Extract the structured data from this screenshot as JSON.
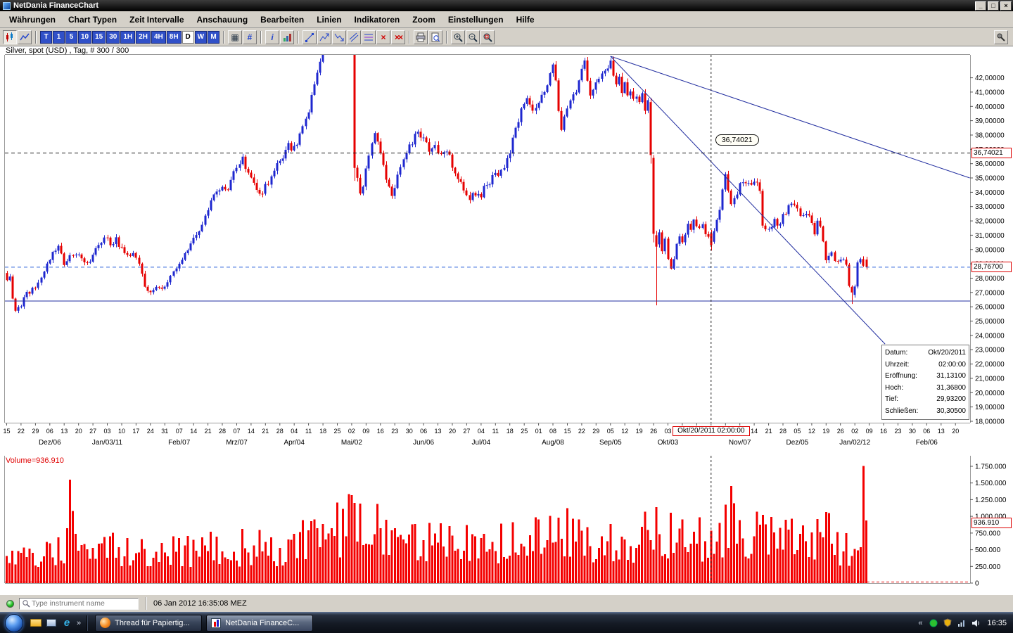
{
  "window": {
    "title": "NetDania FinanceChart",
    "controls": {
      "minimize": "_",
      "maximize": "□",
      "close": "×"
    }
  },
  "menu": {
    "items": [
      "Währungen",
      "Chart Typen",
      "Zeit Intervalle",
      "Anschauung",
      "Bearbeiten",
      "Linien",
      "Indikatoren",
      "Zoom",
      "Einstellungen",
      "Hilfe"
    ]
  },
  "toolbar": {
    "intervals": [
      "T",
      "1",
      "5",
      "10",
      "15",
      "30",
      "1H",
      "2H",
      "4H",
      "8H",
      "D",
      "W",
      "M"
    ],
    "active_interval": "D",
    "glyphs": {
      "grid": "▦",
      "hash": "#",
      "info": "i",
      "delete": "×",
      "delete_all": "××"
    }
  },
  "chart": {
    "instrument_label": "Silver, spot (USD) , Tag, # 300 / 300",
    "volume_pane_label": "Volume=936.910",
    "tooltip_price": "36,74021",
    "marker_price_label": "36,74021",
    "last_price_label": "28,76700",
    "volume_marker_label": "936.910",
    "crosshair_date_label": "Okt/20/2011 02:00:00",
    "data_window": [
      {
        "k": "Datum:",
        "v": "Okt/20/2011"
      },
      {
        "k": "Uhrzeit:",
        "v": "02:00:00"
      },
      {
        "k": "Eröffnung:",
        "v": "31,13100"
      },
      {
        "k": "Hoch:",
        "v": "31,36800"
      },
      {
        "k": "Tief:",
        "v": "29,93200"
      },
      {
        "k": "Schließen:",
        "v": "30,30500"
      }
    ]
  },
  "chart_data": {
    "type": "candlestick",
    "title": "Silver, spot (USD), Tag (daily), 300 of 300 bars, Nov 2010 - 06 Jan 2012",
    "bars_total": 300,
    "y_axis": {
      "min": 18,
      "max": 42,
      "tick_step": 1,
      "plot_max": 43.6,
      "plot_min": 17.9,
      "label_format": "de, 5 decimals"
    },
    "volume_axis": {
      "max": 1750000,
      "tick_step": 250000
    },
    "x_axis": {
      "week_labels": [
        "15",
        "22",
        "29",
        "06",
        "13",
        "20",
        "27",
        "03",
        "10",
        "17",
        "24",
        "31",
        "07",
        "14",
        "21",
        "28",
        "07",
        "14",
        "21",
        "28",
        "04",
        "11",
        "18",
        "25",
        "02",
        "09",
        "16",
        "23",
        "30",
        "06",
        "13",
        "20",
        "27",
        "04",
        "11",
        "18",
        "25",
        "01",
        "08",
        "15",
        "22",
        "29",
        "05",
        "12",
        "19",
        "26",
        "03",
        "10",
        "17",
        "24",
        "31",
        "07",
        "14",
        "21",
        "28",
        "05",
        "12",
        "19",
        "26",
        "02",
        "09",
        "16",
        "23",
        "30",
        "06",
        "13",
        "20"
      ],
      "month_labels": [
        {
          "week": 3,
          "label": "Dez/06"
        },
        {
          "week": 7,
          "label": "Jan/03/11"
        },
        {
          "week": 12,
          "label": "Feb/07"
        },
        {
          "week": 16,
          "label": "Mrz/07"
        },
        {
          "week": 20,
          "label": "Apr/04"
        },
        {
          "week": 24,
          "label": "Mai/02"
        },
        {
          "week": 29,
          "label": "Jun/06"
        },
        {
          "week": 33,
          "label": "Jul/04"
        },
        {
          "week": 38,
          "label": "Aug/08"
        },
        {
          "week": 42,
          "label": "Sep/05"
        },
        {
          "week": 46,
          "label": "Okt/03"
        },
        {
          "week": 51,
          "label": "Nov/07"
        },
        {
          "week": 55,
          "label": "Dez/05"
        },
        {
          "week": 59,
          "label": "Jan/02/12"
        },
        {
          "week": 64,
          "label": "Feb/06"
        }
      ]
    },
    "price_anchors": [
      [
        0,
        27.9
      ],
      [
        1,
        28.3
      ],
      [
        2,
        26.4
      ],
      [
        3,
        25.7
      ],
      [
        5,
        26.1
      ],
      [
        7,
        26.9
      ],
      [
        10,
        27.5
      ],
      [
        12,
        28.1
      ],
      [
        14,
        28.8
      ],
      [
        16,
        29.6
      ],
      [
        18,
        30.3
      ],
      [
        20,
        29.1
      ],
      [
        22,
        29.5
      ],
      [
        24,
        29.8
      ],
      [
        26,
        29.4
      ],
      [
        28,
        29.0
      ],
      [
        30,
        29.6
      ],
      [
        32,
        30.2
      ],
      [
        34,
        30.9
      ],
      [
        36,
        30.3
      ],
      [
        38,
        30.7
      ],
      [
        40,
        30.0
      ],
      [
        42,
        29.4
      ],
      [
        44,
        29.7
      ],
      [
        46,
        28.9
      ],
      [
        48,
        27.3
      ],
      [
        50,
        26.9
      ],
      [
        52,
        27.3
      ],
      [
        54,
        27.1
      ],
      [
        56,
        27.9
      ],
      [
        58,
        28.6
      ],
      [
        61,
        29.4
      ],
      [
        64,
        30.3
      ],
      [
        66,
        31.0
      ],
      [
        68,
        31.9
      ],
      [
        70,
        32.7
      ],
      [
        71,
        33.3
      ],
      [
        73,
        33.9
      ],
      [
        75,
        34.5
      ],
      [
        77,
        34.2
      ],
      [
        79,
        35.2
      ],
      [
        81,
        36.0
      ],
      [
        82,
        36.5
      ],
      [
        84,
        35.3
      ],
      [
        86,
        34.4
      ],
      [
        88,
        33.9
      ],
      [
        90,
        34.4
      ],
      [
        92,
        35.1
      ],
      [
        94,
        35.9
      ],
      [
        96,
        36.5
      ],
      [
        98,
        37.2
      ],
      [
        100,
        37.0
      ],
      [
        102,
        37.9
      ],
      [
        104,
        38.9
      ],
      [
        106,
        40.5
      ],
      [
        108,
        42.3
      ],
      [
        110,
        44.2
      ],
      [
        112,
        45.8
      ],
      [
        114,
        47.3
      ],
      [
        116,
        48.9
      ],
      [
        118,
        49.3
      ],
      [
        119,
        46.5
      ],
      [
        120,
        44.0
      ],
      [
        121,
        35.7
      ],
      [
        122,
        35.1
      ],
      [
        123,
        33.8
      ],
      [
        124,
        34.3
      ],
      [
        126,
        36.8
      ],
      [
        128,
        38.3
      ],
      [
        130,
        36.9
      ],
      [
        132,
        35.0
      ],
      [
        134,
        33.9
      ],
      [
        136,
        35.2
      ],
      [
        138,
        36.4
      ],
      [
        140,
        37.2
      ],
      [
        142,
        38.0
      ],
      [
        143,
        38.4
      ],
      [
        145,
        37.6
      ],
      [
        147,
        37.0
      ],
      [
        149,
        37.5
      ],
      [
        151,
        36.4
      ],
      [
        153,
        36.8
      ],
      [
        155,
        35.9
      ],
      [
        157,
        35.1
      ],
      [
        159,
        34.4
      ],
      [
        161,
        33.7
      ],
      [
        163,
        34.0
      ],
      [
        165,
        33.9
      ],
      [
        167,
        34.6
      ],
      [
        170,
        35.2
      ],
      [
        173,
        35.7
      ],
      [
        175,
        36.9
      ],
      [
        177,
        38.4
      ],
      [
        179,
        39.6
      ],
      [
        181,
        40.3
      ],
      [
        183,
        39.8
      ],
      [
        185,
        40.1
      ],
      [
        187,
        41.2
      ],
      [
        189,
        42.3
      ],
      [
        190,
        42.6
      ],
      [
        191,
        41.5
      ],
      [
        192,
        39.8
      ],
      [
        193,
        38.3
      ],
      [
        194,
        39.5
      ],
      [
        196,
        40.2
      ],
      [
        198,
        41.3
      ],
      [
        200,
        42.9
      ],
      [
        201,
        43.5
      ],
      [
        202,
        42.0
      ],
      [
        203,
        40.7
      ],
      [
        204,
        41.2
      ],
      [
        206,
        41.9
      ],
      [
        208,
        42.5
      ],
      [
        210,
        43.3
      ],
      [
        211,
        42.3
      ],
      [
        212,
        41.7
      ],
      [
        213,
        42.1
      ],
      [
        214,
        41.0
      ],
      [
        215,
        41.5
      ],
      [
        216,
        40.7
      ],
      [
        217,
        41.2
      ],
      [
        218,
        40.4
      ],
      [
        219,
        40.9
      ],
      [
        220,
        40.2
      ],
      [
        221,
        40.6
      ],
      [
        222,
        40.0
      ],
      [
        223,
        40.3
      ],
      [
        224,
        36.6
      ],
      [
        225,
        31.1
      ],
      [
        226,
        30.2
      ],
      [
        227,
        31.4
      ],
      [
        228,
        30.0
      ],
      [
        229,
        30.6
      ],
      [
        230,
        29.4
      ],
      [
        231,
        28.6
      ],
      [
        232,
        29.5
      ],
      [
        233,
        30.4
      ],
      [
        234,
        30.9
      ],
      [
        235,
        30.4
      ],
      [
        236,
        31.2
      ],
      [
        237,
        31.9
      ],
      [
        238,
        31.5
      ],
      [
        239,
        32.2
      ],
      [
        240,
        31.8
      ],
      [
        241,
        31.4
      ],
      [
        242,
        31.7
      ],
      [
        243,
        31.1
      ],
      [
        244,
        30.9
      ],
      [
        245,
        30.3
      ],
      [
        246,
        31.4
      ],
      [
        247,
        32.0
      ],
      [
        248,
        33.0
      ],
      [
        249,
        34.1
      ],
      [
        250,
        35.3
      ],
      [
        251,
        34.1
      ],
      [
        252,
        33.2
      ],
      [
        254,
        34.1
      ],
      [
        256,
        34.8
      ],
      [
        258,
        34.4
      ],
      [
        260,
        34.8
      ],
      [
        261,
        34.5
      ],
      [
        262,
        34.0
      ],
      [
        263,
        31.9
      ],
      [
        265,
        31.4
      ],
      [
        267,
        32.2
      ],
      [
        268,
        31.5
      ],
      [
        270,
        32.4
      ],
      [
        272,
        33.0
      ],
      [
        274,
        32.9
      ],
      [
        276,
        32.4
      ],
      [
        278,
        32.7
      ],
      [
        280,
        31.9
      ],
      [
        281,
        31.2
      ],
      [
        282,
        32.0
      ],
      [
        283,
        31.5
      ],
      [
        284,
        30.8
      ],
      [
        285,
        29.1
      ],
      [
        286,
        29.4
      ],
      [
        287,
        29.8
      ],
      [
        288,
        29.0
      ],
      [
        289,
        29.4
      ],
      [
        290,
        29.1
      ],
      [
        291,
        29.2
      ],
      [
        292,
        28.8
      ],
      [
        293,
        27.4
      ],
      [
        294,
        27.0
      ],
      [
        295,
        27.6
      ],
      [
        296,
        28.9
      ],
      [
        297,
        29.4
      ],
      [
        298,
        29.1
      ],
      [
        299,
        28.8
      ]
    ],
    "special_bars": {
      "121": {
        "open": 44.5,
        "high": 45.2,
        "low": 34.8,
        "close": 35.7
      },
      "224": {
        "open": 40.3,
        "high": 40.6,
        "low": 36.0,
        "close": 36.6
      },
      "225": {
        "open": 36.4,
        "high": 36.6,
        "low": 30.5,
        "close": 31.1
      },
      "226": {
        "open": 31.0,
        "high": 31.3,
        "low": 26.1,
        "close": 30.2
      },
      "245": {
        "open": 31.131,
        "high": 31.368,
        "low": 29.932,
        "close": 30.305
      },
      "294": {
        "open": 27.4,
        "high": 27.5,
        "low": 26.2,
        "close": 27.0
      },
      "299": {
        "open": 29.3,
        "high": 29.5,
        "low": 28.6,
        "close": 28.767
      }
    },
    "volume_anchors": [
      [
        0,
        420
      ],
      [
        5,
        380
      ],
      [
        10,
        430
      ],
      [
        15,
        480
      ],
      [
        20,
        560
      ],
      [
        24,
        520
      ],
      [
        30,
        430
      ],
      [
        35,
        470
      ],
      [
        40,
        520
      ],
      [
        45,
        480
      ],
      [
        50,
        450
      ],
      [
        55,
        430
      ],
      [
        60,
        470
      ],
      [
        65,
        500
      ],
      [
        70,
        520
      ],
      [
        75,
        490
      ],
      [
        80,
        530
      ],
      [
        85,
        560
      ],
      [
        90,
        520
      ],
      [
        95,
        540
      ],
      [
        100,
        580
      ],
      [
        105,
        640
      ],
      [
        110,
        720
      ],
      [
        115,
        780
      ],
      [
        118,
        850
      ],
      [
        121,
        980
      ],
      [
        124,
        900
      ],
      [
        128,
        820
      ],
      [
        132,
        880
      ],
      [
        136,
        760
      ],
      [
        140,
        700
      ],
      [
        145,
        650
      ],
      [
        150,
        600
      ],
      [
        155,
        580
      ],
      [
        160,
        560
      ],
      [
        165,
        540
      ],
      [
        170,
        580
      ],
      [
        175,
        640
      ],
      [
        178,
        720
      ],
      [
        182,
        680
      ],
      [
        186,
        700
      ],
      [
        190,
        740
      ],
      [
        193,
        780
      ],
      [
        197,
        680
      ],
      [
        201,
        760
      ],
      [
        205,
        640
      ],
      [
        210,
        620
      ],
      [
        215,
        600
      ],
      [
        220,
        580
      ],
      [
        224,
        820
      ],
      [
        226,
        880
      ],
      [
        230,
        780
      ],
      [
        235,
        720
      ],
      [
        240,
        680
      ],
      [
        245,
        700
      ],
      [
        250,
        800
      ],
      [
        252,
        980
      ],
      [
        256,
        760
      ],
      [
        260,
        700
      ],
      [
        264,
        800
      ],
      [
        268,
        740
      ],
      [
        272,
        680
      ],
      [
        276,
        640
      ],
      [
        280,
        600
      ],
      [
        284,
        760
      ],
      [
        286,
        820
      ],
      [
        290,
        560
      ],
      [
        293,
        520
      ],
      [
        295,
        480
      ],
      [
        297,
        430
      ],
      [
        299,
        450
      ]
    ],
    "volume_spikes": {
      "22": 1550000,
      "23": 1080000,
      "298": 1755000,
      "299": 936910
    },
    "markers": {
      "level_price": 36.74021,
      "last_price": 28.767,
      "volume": 936910
    },
    "support_line": {
      "price": 26.4
    },
    "trendlines": [
      {
        "from": {
          "bar": 210,
          "price": 43.5
        },
        "to": {
          "bar": 335,
          "price": 35.0
        }
      },
      {
        "from": {
          "bar": 210,
          "price": 43.5
        },
        "to": {
          "bar": 305.5,
          "price": 23.4
        }
      }
    ],
    "crosshair": {
      "bar": 245,
      "date": "Okt/20/2011 02:00:00",
      "ohlc": {
        "open": 31.131,
        "high": 31.368,
        "low": 29.932,
        "close": 30.305
      }
    },
    "colors": {
      "up": "#1e27cf",
      "down": "#e60000",
      "volume": "#f40000",
      "trend": "#232fa0",
      "level_dash": "#222222",
      "last_dash": "#2b62d9",
      "baseline": "#e60000"
    }
  },
  "instrument_bar": {
    "placeholder": "Type instrument name",
    "timestamp": "06 Jan 2012 16:35:08 MEZ"
  },
  "taskbar": {
    "tasks": [
      {
        "label": "Thread für Papiertig..."
      },
      {
        "label": "NetDania FinanceC..."
      }
    ],
    "clock": "16:35",
    "ie_glyph": "e",
    "overflow_chevron": "»",
    "tray_chevron": "«"
  }
}
